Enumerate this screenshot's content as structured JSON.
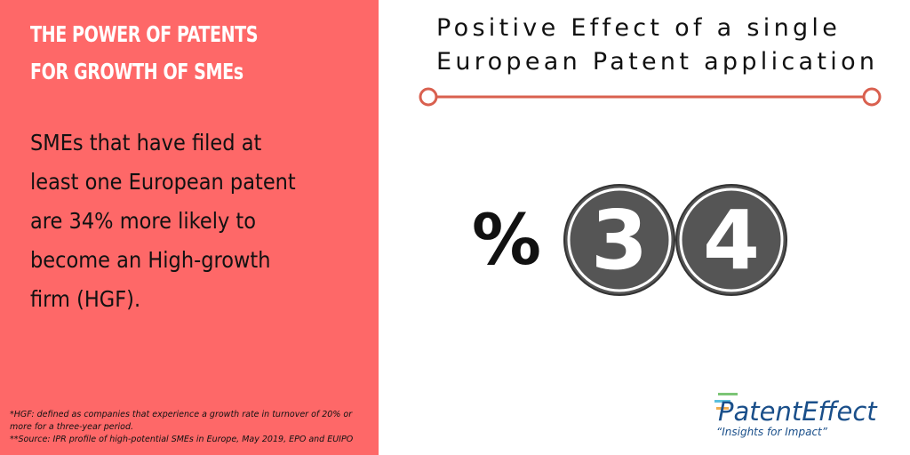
{
  "left": {
    "title": [
      "THE POWER OF PATENTS",
      "FOR GROWTH OF SMEs"
    ],
    "body": [
      "SMEs that have filed at",
      "least one European patent",
      "are 34% more likely to",
      "become an High-growth",
      "firm (HGF)."
    ],
    "footnotes": [
      "*HGF: defined as companies that experience a growth rate in turnover of 20% or",
      "more for a three-year period.",
      "**Source: IPR profile of high-potential SMEs in Europe, May 2019, EPO and EUIPO"
    ]
  },
  "right": {
    "title": [
      "Positive Effect of a single",
      "European Patent application"
    ],
    "figure": {
      "symbol": "%",
      "digits": [
        "3",
        "4"
      ]
    },
    "logo": {
      "name": "PatentEffect",
      "tagline": "“Insights for Impact”"
    }
  }
}
